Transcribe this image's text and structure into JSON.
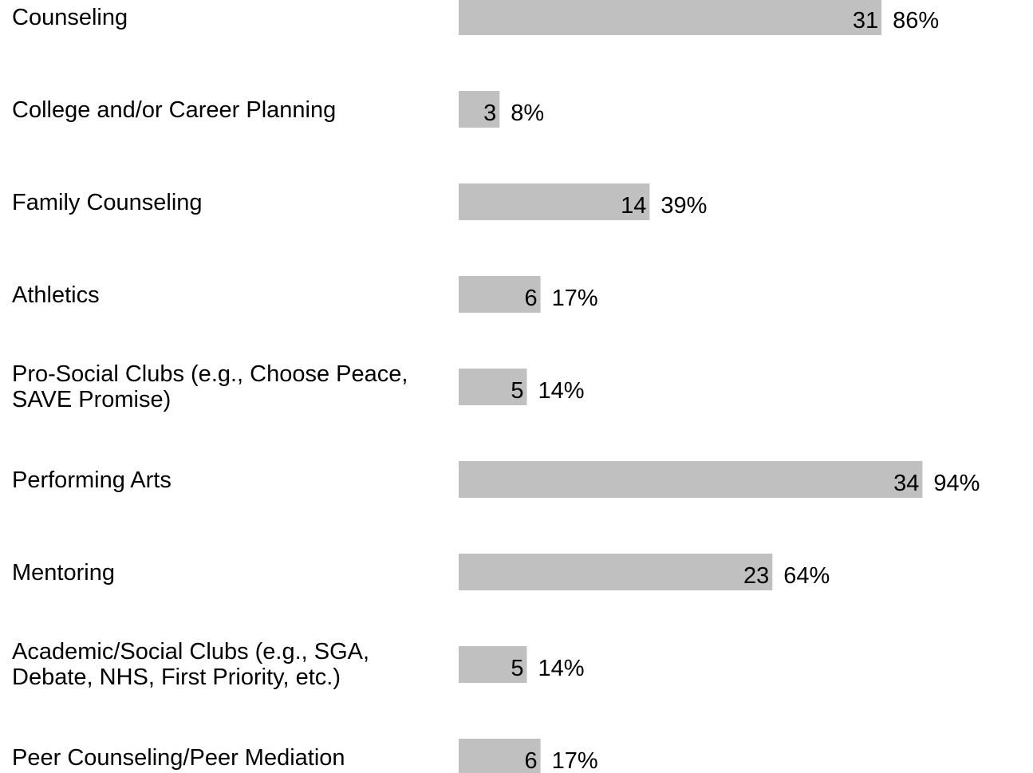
{
  "chart_data": {
    "type": "bar",
    "orientation": "horizontal",
    "categories": [
      [
        "Counseling"
      ],
      [
        "College and/or Career Planning"
      ],
      [
        "Family Counseling"
      ],
      [
        "Athletics"
      ],
      [
        "Pro-Social Clubs (e.g., Choose Peace,",
        "SAVE Promise)"
      ],
      [
        "Performing Arts"
      ],
      [
        "Mentoring"
      ],
      [
        "Academic/Social Clubs (e.g., SGA,",
        "Debate, NHS, First Priority, etc.)"
      ],
      [
        "Peer Counseling/Peer Mediation"
      ]
    ],
    "values": [
      31,
      3,
      14,
      6,
      5,
      34,
      23,
      5,
      6
    ],
    "value_labels": [
      "31",
      "3",
      "14",
      "6",
      "5",
      "34",
      "23",
      "5",
      "6"
    ],
    "percent_labels": [
      "86%",
      "8%",
      "39%",
      "17%",
      "14%",
      "94%",
      "64%",
      "14%",
      "17%"
    ],
    "xlim": [
      0,
      34
    ],
    "grid": false,
    "legend": "none",
    "bar_color": "#c0c0c0",
    "text_color": "#000000"
  }
}
